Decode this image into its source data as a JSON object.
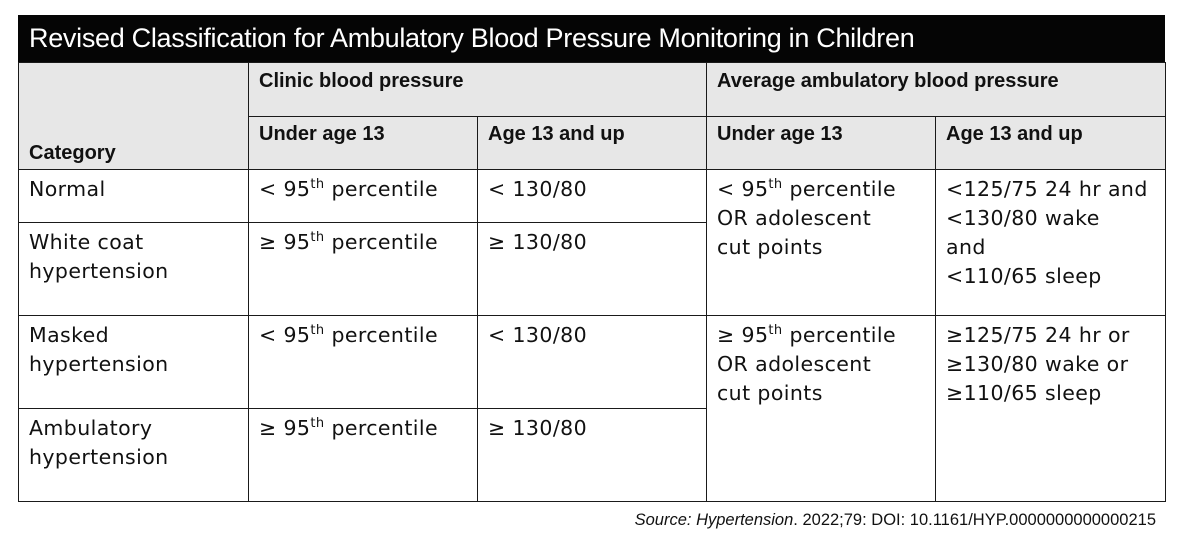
{
  "title": "Revised Classification for Ambulatory Blood Pressure Monitoring in Children",
  "headers": {
    "category": "Category",
    "clinic_group": "Clinic blood pressure",
    "ambulatory_group": "Average ambulatory blood pressure",
    "clinic_under13": "Under age 13",
    "clinic_13up": "Age 13 and up",
    "amb_under13": "Under age 13",
    "amb_13up": "Age 13 and up"
  },
  "rows": [
    {
      "category": [
        "Normal"
      ],
      "clinic_under13": {
        "pre": "< 95",
        "sup": "th",
        "post": " percentile"
      },
      "clinic_13up": "< 130/80"
    },
    {
      "category": [
        "White coat",
        "hypertension"
      ],
      "clinic_under13": {
        "pre": "≥ 95",
        "sup": "th",
        "post": " percentile"
      },
      "clinic_13up": "≥ 130/80"
    },
    {
      "category": [
        "Masked",
        "hypertension"
      ],
      "clinic_under13": {
        "pre": "< 95",
        "sup": "th",
        "post": " percentile"
      },
      "clinic_13up": "< 130/80"
    },
    {
      "category": [
        "Ambulatory",
        "hypertension"
      ],
      "clinic_under13": {
        "pre": "≥ 95",
        "sup": "th",
        "post": " percentile"
      },
      "clinic_13up": "≥ 130/80"
    }
  ],
  "ambulatory_merged": [
    {
      "under13": {
        "pre": "< 95",
        "sup": "th",
        "post": " percentile",
        "line2": "OR adolescent",
        "line3": "cut points"
      },
      "age13up": [
        "<125/75 24 hr and",
        "<130/80 wake",
        "and",
        "<110/65 sleep"
      ]
    },
    {
      "under13": {
        "pre": "≥ 95",
        "sup": "th",
        "post": " percentile",
        "line2": "OR adolescent",
        "line3": "cut points"
      },
      "age13up": [
        "≥125/75 24 hr or",
        "≥130/80 wake or",
        "≥110/65 sleep"
      ]
    }
  ],
  "source": {
    "label": "Source:",
    "journal": "Hypertension",
    "citation": ". 2022;79: DOI: 10.1161/HYP.0000000000000215"
  }
}
